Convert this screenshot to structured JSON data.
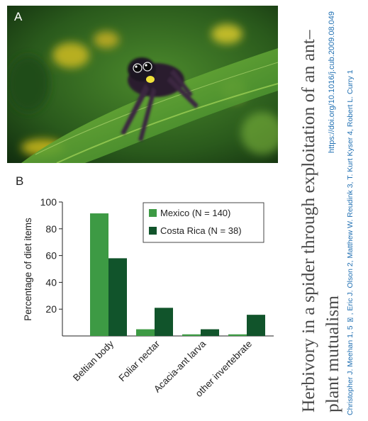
{
  "figure": {
    "panel_a_label": "A",
    "panel_b_label": "B",
    "photo_icon": "jumping-spider-on-leaf-photo"
  },
  "paper": {
    "title": "Herbivory in a spider through exploitation of an ant–plant mutualism",
    "doi": "https://doi.org/10.1016/j.cub.2009.08.049",
    "authors": "Christopher J. Meehan 1, 5 ✉, Eric J. Olson 2, Matthew W. Reudink 3, T. Kurt Kyser 4, Robert L. Curry 1"
  },
  "colors": {
    "mexico": "#3d9a44",
    "costa_rica": "#11542b"
  },
  "chart_data": {
    "type": "bar",
    "categories": [
      "Beltian body",
      "Foliar nectar",
      "Acacia-ant larva",
      "other invertebrate"
    ],
    "series": [
      {
        "name": "Mexico",
        "n_label": "(N = 140)",
        "values": [
          91.5,
          5.0,
          1.2,
          1.2
        ]
      },
      {
        "name": "Costa Rica",
        "n_label": "(N = 38)",
        "values": [
          58.0,
          21.0,
          5.0,
          15.8
        ]
      }
    ],
    "ylabel": "Percentage of diet items",
    "xlabel": "",
    "ylim": [
      0,
      100
    ],
    "yticks": [
      20,
      40,
      60,
      80,
      100
    ],
    "legend_position": "top-right",
    "grid": false
  }
}
